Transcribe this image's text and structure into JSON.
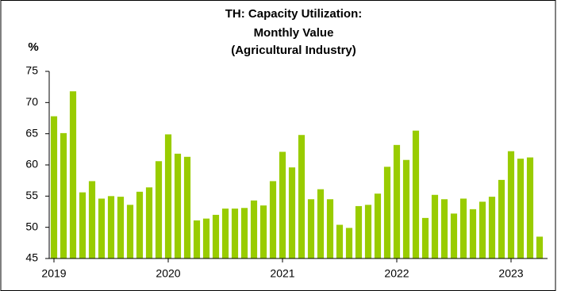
{
  "chart_data": {
    "type": "bar",
    "title": [
      "TH: Capacity Utilization:",
      "Monthly Value",
      "(Agricultural Industry)"
    ],
    "y_label": "%",
    "categories": [
      "2019",
      null,
      null,
      null,
      null,
      null,
      null,
      null,
      null,
      null,
      null,
      null,
      "2020",
      null,
      null,
      null,
      null,
      null,
      null,
      null,
      null,
      null,
      null,
      null,
      "2021",
      null,
      null,
      null,
      null,
      null,
      null,
      null,
      null,
      null,
      null,
      null,
      "2022",
      null,
      null,
      null,
      null,
      null,
      null,
      null,
      null,
      null,
      null,
      null,
      "2023",
      null,
      null,
      null
    ],
    "values": [
      67.8,
      65.1,
      71.8,
      55.6,
      57.4,
      54.6,
      55.0,
      54.9,
      53.6,
      55.7,
      56.4,
      60.6,
      64.9,
      61.8,
      61.3,
      51.1,
      51.4,
      52.0,
      53.0,
      53.0,
      53.1,
      54.3,
      53.5,
      57.4,
      62.1,
      59.6,
      64.8,
      54.5,
      56.1,
      54.5,
      50.4,
      49.9,
      53.4,
      53.6,
      55.4,
      59.7,
      63.2,
      60.8,
      65.5,
      51.5,
      55.2,
      54.5,
      52.2,
      54.6,
      52.9,
      54.1,
      54.9,
      57.6,
      62.2,
      61.0,
      61.2,
      48.5
    ],
    "color": "#99cc00",
    "ylim": [
      45,
      75
    ],
    "yticks": [
      45,
      50,
      55,
      60,
      65,
      70,
      75
    ],
    "grid": false
  }
}
